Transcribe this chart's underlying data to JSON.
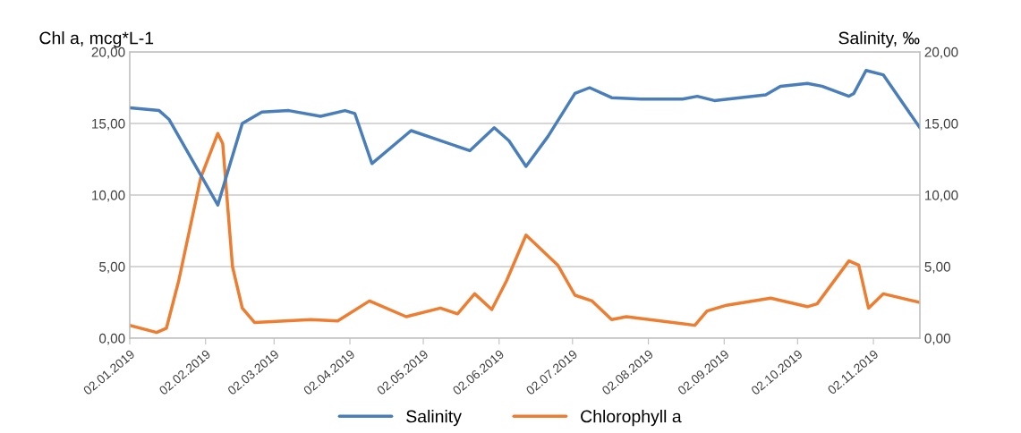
{
  "chart_data": {
    "type": "line",
    "ylabel": "Chl a, mcg*L-1",
    "y2label": "Salinity, ‰",
    "xlim": [
      "2019-01-02",
      "2019-11-21"
    ],
    "xticks": [
      {
        "value": "2019-01-02",
        "label": "02.01.2019"
      },
      {
        "value": "2019-02-02",
        "label": "02.02.2019"
      },
      {
        "value": "2019-03-02",
        "label": "02.03.2019"
      },
      {
        "value": "2019-04-02",
        "label": "02.04.2019"
      },
      {
        "value": "2019-05-02",
        "label": "02.05.2019"
      },
      {
        "value": "2019-06-02",
        "label": "02.06.2019"
      },
      {
        "value": "2019-07-02",
        "label": "02.07.2019"
      },
      {
        "value": "2019-08-02",
        "label": "02.08.2019"
      },
      {
        "value": "2019-09-02",
        "label": "02.09.2019"
      },
      {
        "value": "2019-10-02",
        "label": "02.10.2019"
      },
      {
        "value": "2019-11-02",
        "label": "02.11.2019"
      }
    ],
    "ylim": [
      0,
      20
    ],
    "yticks": [
      {
        "value": 0,
        "label": "0,00"
      },
      {
        "value": 5,
        "label": "5,00"
      },
      {
        "value": 10,
        "label": "10,00"
      },
      {
        "value": 15,
        "label": "15,00"
      },
      {
        "value": 20,
        "label": "20,00"
      }
    ],
    "y2lim": [
      0,
      20
    ],
    "y2ticks": [
      {
        "value": 0,
        "label": "0,00"
      },
      {
        "value": 5,
        "label": "5,00"
      },
      {
        "value": 10,
        "label": "10,00"
      },
      {
        "value": 15,
        "label": "15,00"
      },
      {
        "value": 20,
        "label": "20,00"
      }
    ],
    "grid": "y",
    "legend": "bottom",
    "marker": "none",
    "line_style": "solid",
    "series": [
      {
        "name": "Salinity",
        "color": "#4a7ebb",
        "axis": "y2",
        "x": [
          "2019-01-02",
          "2019-01-14",
          "2019-01-18",
          "2019-02-07",
          "2019-02-11",
          "2019-02-17",
          "2019-02-25",
          "2019-03-08",
          "2019-03-21",
          "2019-03-31",
          "2019-04-04",
          "2019-04-11",
          "2019-04-27",
          "2019-05-21",
          "2019-05-31",
          "2019-06-06",
          "2019-06-13",
          "2019-06-22",
          "2019-07-03",
          "2019-07-09",
          "2019-07-18",
          "2019-07-30",
          "2019-08-16",
          "2019-08-22",
          "2019-08-29",
          "2019-09-19",
          "2019-09-25",
          "2019-10-06",
          "2019-10-12",
          "2019-10-23",
          "2019-10-25",
          "2019-10-30",
          "2019-11-06",
          "2019-11-21"
        ],
        "values": [
          16.1,
          15.9,
          15.3,
          9.3,
          11.6,
          15.0,
          15.8,
          15.9,
          15.5,
          15.9,
          15.7,
          12.2,
          14.5,
          13.1,
          14.7,
          13.8,
          12.0,
          14.1,
          17.1,
          17.5,
          16.8,
          16.7,
          16.7,
          16.9,
          16.6,
          17.0,
          17.6,
          17.8,
          17.6,
          16.9,
          17.1,
          18.7,
          18.4,
          14.7
        ]
      },
      {
        "name": "Chlorophyll a",
        "color": "#ed7d31",
        "x": [
          "2019-01-02",
          "2019-01-13",
          "2019-01-17",
          "2019-01-22",
          "2019-01-31",
          "2019-02-07",
          "2019-02-09",
          "2019-02-13",
          "2019-02-17",
          "2019-02-22",
          "2019-03-17",
          "2019-03-28",
          "2019-04-10",
          "2019-04-25",
          "2019-05-09",
          "2019-05-16",
          "2019-05-23",
          "2019-05-30",
          "2019-06-05",
          "2019-06-13",
          "2019-06-26",
          "2019-07-03",
          "2019-07-10",
          "2019-07-18",
          "2019-07-24",
          "2019-08-21",
          "2019-08-26",
          "2019-09-03",
          "2019-09-21",
          "2019-10-06",
          "2019-10-10",
          "2019-10-23",
          "2019-10-27",
          "2019-10-31",
          "2019-11-06",
          "2019-11-21"
        ],
        "values": [
          0.9,
          0.4,
          0.7,
          4.0,
          11.2,
          14.3,
          13.6,
          5.0,
          2.1,
          1.1,
          1.3,
          1.2,
          2.6,
          1.5,
          2.1,
          1.7,
          3.1,
          2.0,
          4.0,
          7.2,
          5.1,
          3.0,
          2.6,
          1.3,
          1.5,
          0.9,
          1.9,
          2.3,
          2.8,
          2.2,
          2.4,
          5.4,
          5.1,
          2.1,
          3.1,
          2.5
        ]
      }
    ]
  }
}
